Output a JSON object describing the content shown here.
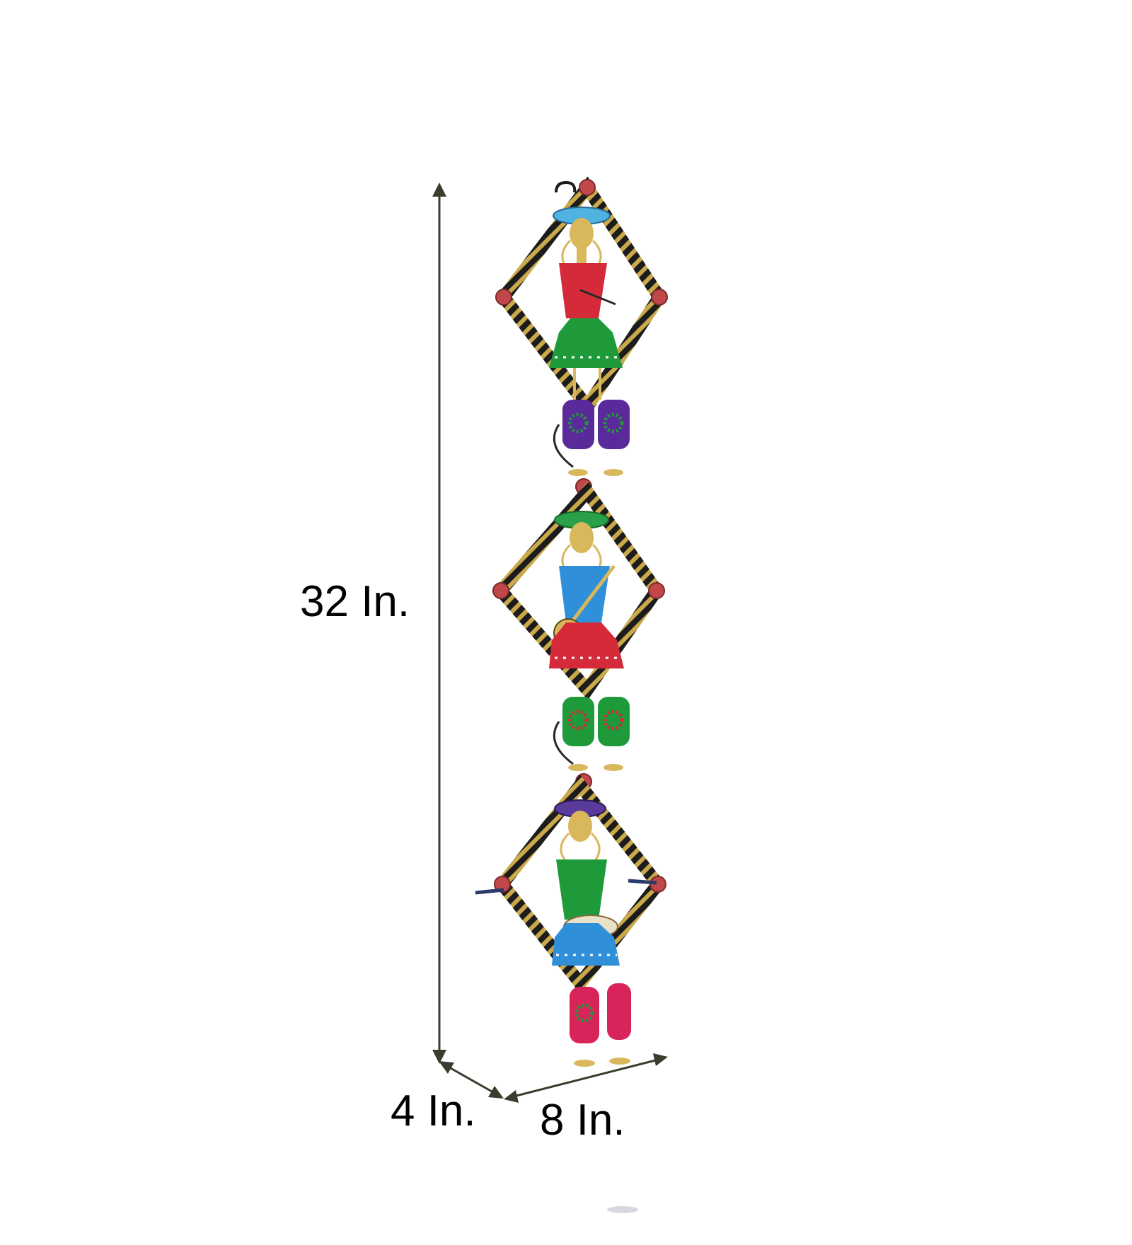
{
  "dimensions": {
    "height": "32 In.",
    "depth": "4 In.",
    "width": "8 In."
  },
  "colors": {
    "arrow": "#3a3d2c",
    "frame_dark": "#1c1c1c",
    "frame_gold": "#c9a94a",
    "gold": "#d8b85a",
    "bead": "#c0474a",
    "dress_red": "#d42a3a",
    "dress_blue": "#2f8fd8",
    "dress_green": "#1f9a3a",
    "hat_blue": "#4fb2e0",
    "hat_green": "#2aa04a",
    "hat_purple": "#5a3a9a",
    "bell_purple": "#5a2a9a",
    "bell_green": "#1f9a3a",
    "bell_pink": "#d8245a"
  },
  "figures": [
    {
      "icon": "flute-player-figure",
      "dress": "dress_red",
      "hat": "hat_blue",
      "bells": "bell_purple"
    },
    {
      "icon": "sitar-player-figure",
      "dress": "dress_blue",
      "hat": "hat_green",
      "bells": "bell_green"
    },
    {
      "icon": "drum-player-figure",
      "dress": "dress_green",
      "hat": "hat_purple",
      "bells": "bell_pink"
    }
  ]
}
